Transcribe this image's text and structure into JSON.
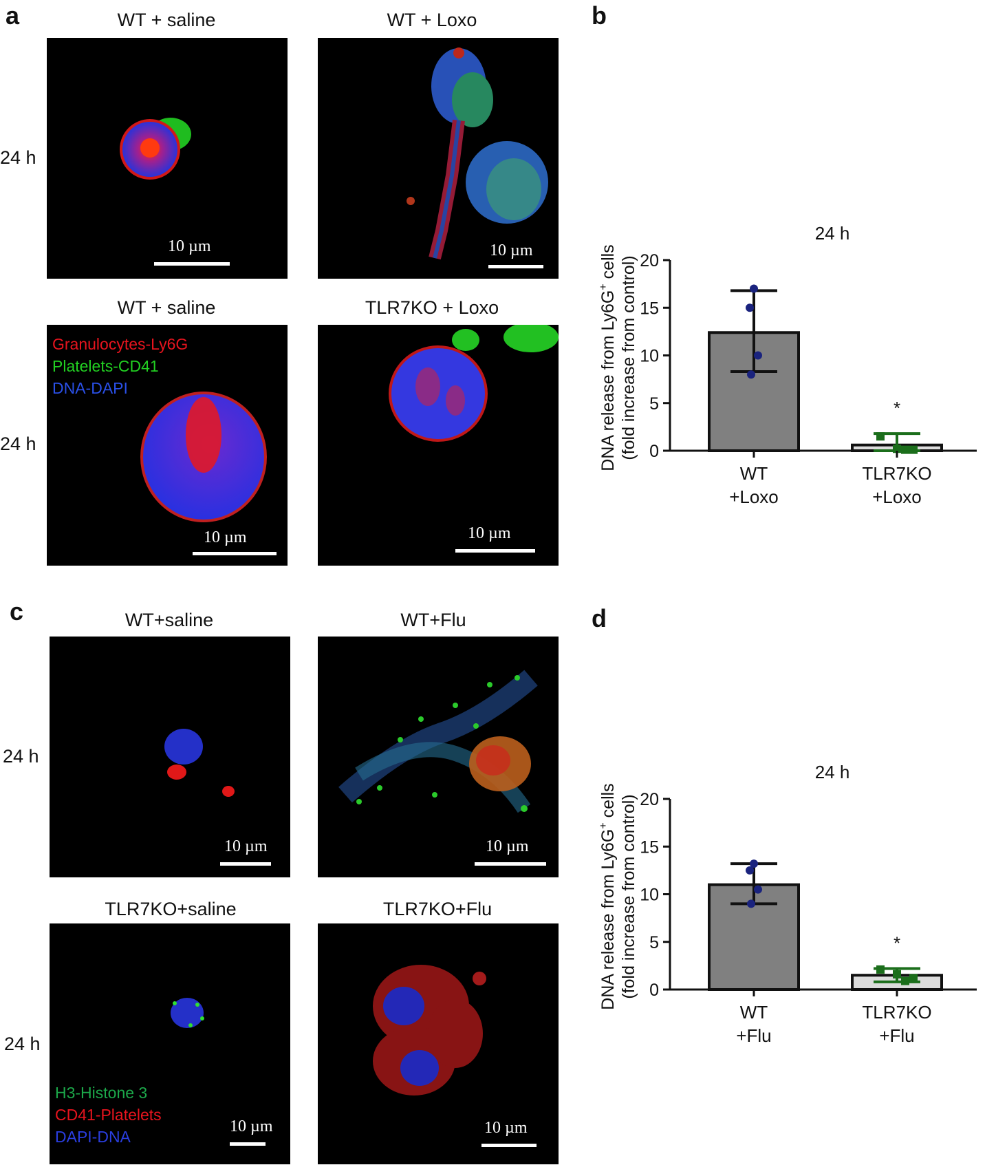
{
  "panels": {
    "a": {
      "letter": "a",
      "images": [
        {
          "title": "WT + saline",
          "scale_label": "10 µm"
        },
        {
          "title": "WT + Loxo",
          "scale_label": "10 µm"
        },
        {
          "title": "WT + saline",
          "scale_label": "10 µm"
        },
        {
          "title": "TLR7KO + Loxo",
          "scale_label": "10 µm"
        }
      ],
      "row_labels": [
        "24 h",
        "24 h"
      ],
      "legend": [
        {
          "text": "Granulocytes-Ly6G",
          "color": "#e8141e"
        },
        {
          "text": "Platelets-CD41",
          "color": "#22d022"
        },
        {
          "text": "DNA-DAPI",
          "color": "#2a50e8"
        }
      ]
    },
    "b": {
      "letter": "b"
    },
    "c": {
      "letter": "c",
      "images": [
        {
          "title": "WT+saline",
          "scale_label": "10 µm"
        },
        {
          "title": "WT+Flu",
          "scale_label": "10 µm"
        },
        {
          "title": "TLR7KO+saline",
          "scale_label": "10 µm"
        },
        {
          "title": "TLR7KO+Flu",
          "scale_label": "10 µm"
        }
      ],
      "row_labels": [
        "24 h",
        "24 h"
      ],
      "legend": [
        {
          "text": "H3-Histone 3",
          "color": "#1ca84a"
        },
        {
          "text": "CD41-Platelets",
          "color": "#e8141e"
        },
        {
          "text": "DAPI-DNA",
          "color": "#2a3ee0"
        }
      ]
    },
    "d": {
      "letter": "d"
    }
  },
  "chart_data": [
    {
      "panel": "b",
      "type": "bar",
      "title": "24 h",
      "ylabel_line1": "DNA release from Ly6G",
      "ylabel_sup": "+",
      "ylabel_line1_end": " cells",
      "ylabel_line2": "(fold increase from control)",
      "ylim": [
        0,
        20
      ],
      "yticks": [
        0,
        5,
        10,
        15,
        20
      ],
      "categories": [
        [
          "WT",
          "+Loxo"
        ],
        [
          "TLR7KO",
          "+Loxo"
        ]
      ],
      "values": [
        12.4,
        0.6
      ],
      "error_high": [
        16.8,
        1.8
      ],
      "error_low": [
        8.3,
        0.0
      ],
      "points": [
        [
          17.0,
          15.0,
          10.0,
          8.0
        ],
        [
          1.5,
          0.2,
          0.1,
          0.1
        ]
      ],
      "bar_colors": [
        "#808080",
        "#dcdcdc"
      ],
      "point_colors": [
        "#1a237e",
        "#1b6e1b"
      ],
      "annotations": [
        {
          "category": 1,
          "text": "*"
        }
      ]
    },
    {
      "panel": "d",
      "type": "bar",
      "title": "24 h",
      "ylabel_line1": "DNA release from Ly6G",
      "ylabel_sup": "+",
      "ylabel_line1_end": " cells",
      "ylabel_line2": "(fold increase from control)",
      "ylim": [
        0,
        20
      ],
      "yticks": [
        0,
        5,
        10,
        15,
        20
      ],
      "categories": [
        [
          "WT",
          "+Flu"
        ],
        [
          "TLR7KO",
          "+Flu"
        ]
      ],
      "values": [
        11.0,
        1.5
      ],
      "error_high": [
        13.2,
        2.2
      ],
      "error_low": [
        9.0,
        0.8
      ],
      "points": [
        [
          13.2,
          12.5,
          10.5,
          9.0
        ],
        [
          2.1,
          1.6,
          1.2,
          0.9
        ]
      ],
      "bar_colors": [
        "#808080",
        "#dcdcdc"
      ],
      "point_colors": [
        "#1a237e",
        "#1b6e1b"
      ],
      "annotations": [
        {
          "category": 1,
          "text": "*"
        }
      ]
    }
  ]
}
